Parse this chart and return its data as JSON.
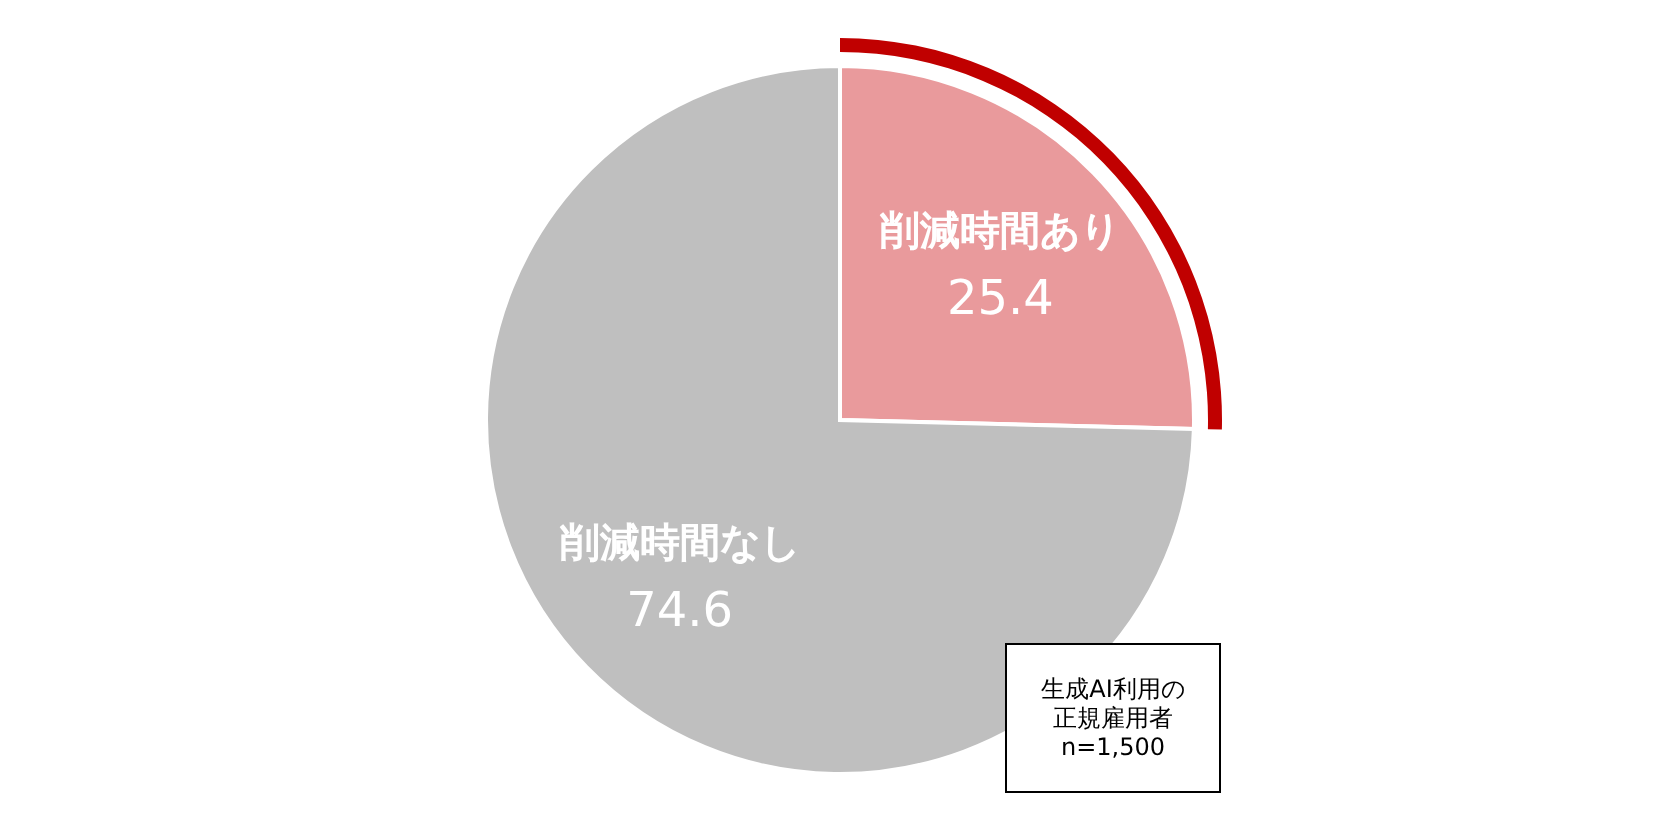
{
  "chart_data": {
    "type": "pie",
    "categories": [
      "削減時間あり",
      "削減時間なし"
    ],
    "values": [
      25.4,
      74.6
    ],
    "colors": [
      "#e99a9c",
      "#bfbfbf"
    ],
    "data_labels": true,
    "annotations": [
      "生成AI利用の正規雇用者",
      "n=1,500"
    ]
  }
}
